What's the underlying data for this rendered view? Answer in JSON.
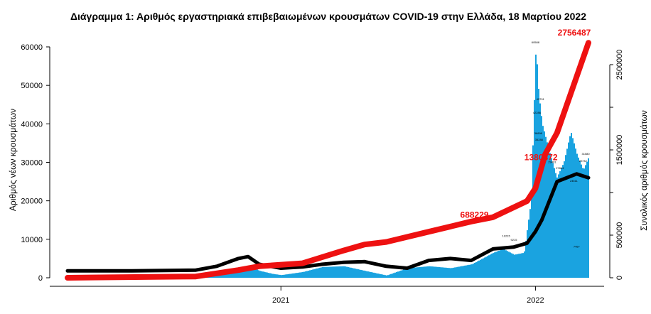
{
  "chart_data": {
    "type": "bar",
    "title": "Διάγραμμα 1: Αριθμός εργαστηριακά επιβεβαιωμένων κρουσμάτων COVID-19 στην Ελλάδα, 18 Μαρτίου 2022",
    "x_ticks": [
      "2021",
      "2022"
    ],
    "y_left": {
      "label": "Αριθμός νέων κρουσμάτων",
      "ylim": [
        0,
        62000
      ],
      "ticks": [
        "0",
        "10000",
        "20000",
        "30000",
        "40000",
        "50000",
        "60000"
      ]
    },
    "y_right": {
      "label": "Συνολικός αριθμός κρουσμάτων",
      "ylim": [
        0,
        2700000
      ],
      "ticks": [
        "0",
        "500000",
        "1500000",
        "2500000"
      ]
    },
    "colors": {
      "bars": "#1aa3e0",
      "rolling": "#000000",
      "cumulative": "#ee1111",
      "annotation": "#ee1111"
    },
    "series": [
      {
        "name": "",
        "kind": "bars",
        "x": [
          "2020-03",
          "2020-05",
          "2020-07",
          "2020-09",
          "2020-10",
          "2020-11-01",
          "2020-11-15",
          "2020-12-01",
          "2020-12-20",
          "2021-01",
          "2021-02",
          "2021-03",
          "2021-04",
          "2021-05",
          "2021-06",
          "2021-07",
          "2021-08",
          "2021-09",
          "2021-10",
          "2021-11-01",
          "2021-11-15",
          "2021-12-01",
          "2021-12-15",
          "2021-12-25",
          "2022-01-01",
          "2022-01-05",
          "2022-01-10",
          "2022-01-20",
          "2022-01-31",
          "2022-02-10",
          "2022-02-20",
          "2022-03-01",
          "2022-03-10",
          "2022-03-18"
        ],
        "values": [
          20,
          50,
          80,
          300,
          800,
          2500,
          3200,
          1800,
          1000,
          700,
          1500,
          2800,
          3000,
          1800,
          600,
          2500,
          3000,
          2500,
          3500,
          6500,
          7500,
          6000,
          6500,
          20000,
          60500,
          48000,
          40000,
          33000,
          26000,
          30000,
          38000,
          32000,
          28000,
          31500
        ]
      },
      {
        "name": "",
        "kind": "rolling_mean",
        "x": [
          "2020-03",
          "2020-06",
          "2020-09",
          "2020-10",
          "2020-11-01",
          "2020-11-15",
          "2020-12-01",
          "2021-01",
          "2021-02",
          "2021-03",
          "2021-04",
          "2021-05",
          "2021-06",
          "2021-07",
          "2021-08",
          "2021-09",
          "2021-10",
          "2021-11",
          "2021-12",
          "2021-12-20",
          "2022-01-01",
          "2022-01-10",
          "2022-02-01",
          "2022-03-01",
          "2022-03-18"
        ],
        "values": [
          1800,
          1800,
          2000,
          3000,
          5000,
          5500,
          3500,
          2500,
          2800,
          3500,
          4000,
          4200,
          3000,
          2500,
          4500,
          5000,
          4500,
          7500,
          8000,
          9000,
          12000,
          15000,
          25000,
          27000,
          26000
        ]
      },
      {
        "name": "",
        "kind": "cumulative",
        "x": [
          "2020-03",
          "2020-09",
          "2020-11",
          "2020-12",
          "2021-02",
          "2021-04",
          "2021-05",
          "2021-06",
          "2021-08",
          "2021-10",
          "2021-11",
          "2021-12-20",
          "2022-01-01",
          "2022-01-15",
          "2022-02-01",
          "2022-03-18"
        ],
        "values": [
          0,
          15000,
          90000,
          135000,
          170000,
          320000,
          390000,
          420000,
          540000,
          660000,
          710000,
          900000,
          1050000,
          1450000,
          1700000,
          2756487
        ]
      }
    ],
    "annotations": [
      {
        "text": "688229",
        "x": "2021-11",
        "value": 688229
      },
      {
        "text": "1380872",
        "x": "2022-01-15",
        "value": 1380872
      },
      {
        "text": "2756487",
        "x": "2022-03-18",
        "value": 2756487
      }
    ],
    "peak_labels": [
      {
        "text": "60588",
        "x": "2022-01-01",
        "value": 60588
      },
      {
        "text": "45791",
        "x": "2022-01-08",
        "value": 45791
      },
      {
        "text": "42286",
        "x": "2022-01-03",
        "value": 42286
      },
      {
        "text": "36898",
        "x": "2022-01-05",
        "value": 36898
      },
      {
        "text": "35288",
        "x": "2022-01-06",
        "value": 35288
      },
      {
        "text": "29401",
        "x": "2022-01-25",
        "value": 29401
      },
      {
        "text": "31580",
        "x": "2022-03-14",
        "value": 31580
      },
      {
        "text": "29732",
        "x": "2022-03-10",
        "value": 29732
      },
      {
        "text": "27864",
        "x": "2022-02-05",
        "value": 27864
      },
      {
        "text": "24511",
        "x": "2022-02-25",
        "value": 24511
      },
      {
        "text": "10215",
        "x": "2021-11-20",
        "value": 10215
      },
      {
        "text": "9215",
        "x": "2021-12-01",
        "value": 9215
      },
      {
        "text": "7457",
        "x": "2022-03-01",
        "value": 7457
      }
    ]
  }
}
